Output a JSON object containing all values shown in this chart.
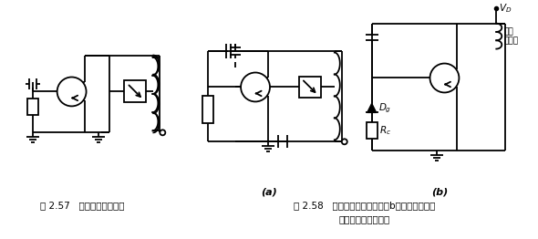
{
  "bg_color": "#ffffff",
  "fig_width": 5.9,
  "fig_height": 2.62,
  "dpi": 100,
  "caption1": "图 2.57   皮尔斯栅－源电路",
  "caption2_line1": "图 2.58   皮尔斯漏－栅电路，（b）为不调整型电",
  "caption2_line2": "路，采用二极管偏置",
  "line_color": "#000000",
  "lw": 1.3
}
